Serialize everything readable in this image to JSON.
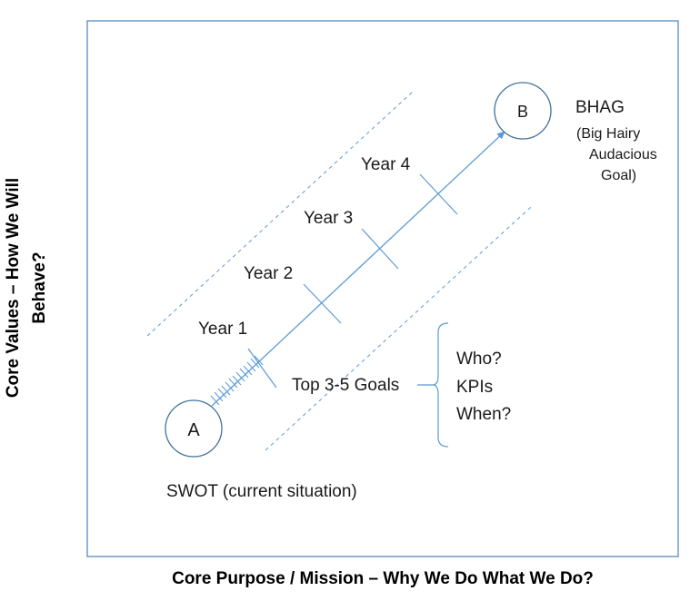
{
  "axes": {
    "y_label": "Core Values – How We Will Behave?",
    "x_label": "Core Purpose / Mission – Why We Do What We Do?"
  },
  "start": {
    "node_label": "A",
    "caption": "SWOT (current situation)"
  },
  "end": {
    "node_label": "B",
    "caption_title": "BHAG",
    "caption_lines": [
      "(Big Hairy",
      "Audacious",
      "Goal)"
    ]
  },
  "milestones": [
    "Year 1",
    "Year 2",
    "Year 3",
    "Year 4"
  ],
  "goals": {
    "label": "Top 3-5 Goals",
    "items": [
      "Who?",
      "KPIs",
      "When?"
    ]
  },
  "colors": {
    "line": "#5b9bd5",
    "node_border": "#41719c",
    "frame": "#4a7ebb",
    "text": "#1a1a1a"
  }
}
